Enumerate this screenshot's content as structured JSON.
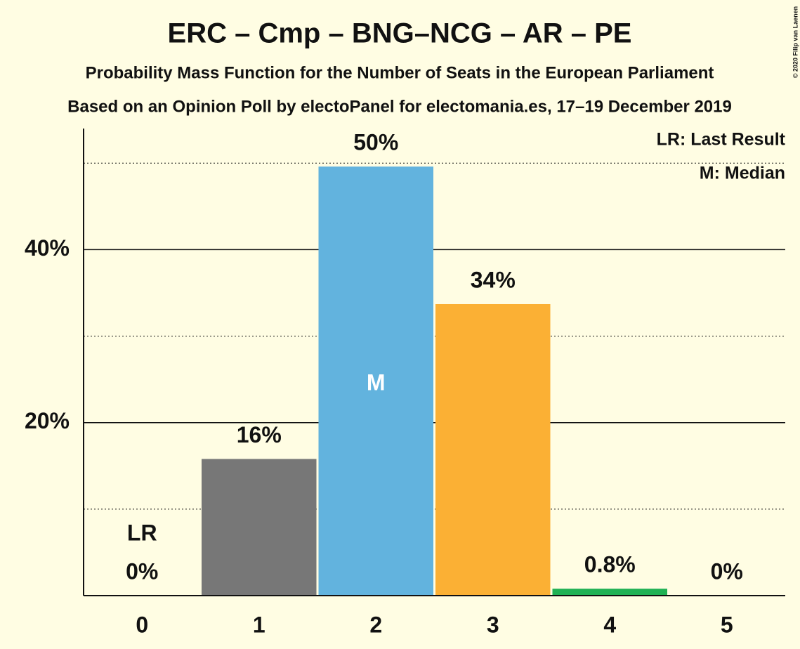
{
  "chart_data": {
    "type": "bar",
    "title": "ERC – Cmp – BNG–NCG – AR – PE",
    "subtitles": [
      "Probability Mass Function for the Number of Seats in the European Parliament",
      "Based on an Opinion Poll by electoPanel for electomania.es, 17–19 December 2019"
    ],
    "categories": [
      "0",
      "1",
      "2",
      "3",
      "4",
      "5"
    ],
    "values": [
      0,
      15.8,
      49.6,
      33.7,
      0.8,
      0
    ],
    "value_labels": [
      "0%",
      "16%",
      "50%",
      "34%",
      "0.8%",
      "0%"
    ],
    "colors": [
      "#777777",
      "#777777",
      "#62b3de",
      "#fbb034",
      "#1fb154",
      "#777777"
    ],
    "ylim": [
      0,
      54
    ],
    "yticks": [
      {
        "value": 20,
        "label": "20%"
      },
      {
        "value": 40,
        "label": "40%"
      }
    ],
    "minor_grid": [
      10,
      30,
      50
    ],
    "last_result_label": "LR",
    "median_label": "M",
    "legend": [
      "LR: Last Result",
      "M: Median"
    ],
    "credit": "© 2020 Filip van Laenen"
  }
}
